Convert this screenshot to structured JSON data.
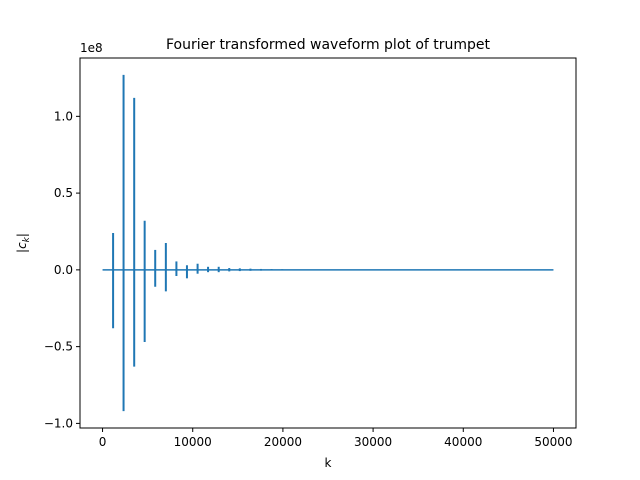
{
  "chart_data": {
    "type": "line",
    "title": "Fourier transformed waveform plot of trumpet",
    "xlabel": "k",
    "ylabel": "|c_k|",
    "y_offset_text": "1e8",
    "xlim": [
      -2500,
      52500
    ],
    "ylim": [
      -103000000.0,
      138000000.0
    ],
    "xticks": [
      0,
      10000,
      20000,
      30000,
      40000,
      50000
    ],
    "xtick_labels": [
      "0",
      "10000",
      "20000",
      "30000",
      "40000",
      "50000"
    ],
    "yticks": [
      -100000000.0,
      -50000000.0,
      0,
      50000000.0,
      100000000.0
    ],
    "ytick_labels": [
      "−1.0",
      "−0.5",
      "0.0",
      "0.5",
      "1.0"
    ],
    "grid": false,
    "series": [
      {
        "color": "#1f77b4",
        "x_range": [
          0,
          50000
        ],
        "peaks": [
          {
            "x": 1170,
            "max": 24000000.0,
            "min": -38000000.0
          },
          {
            "x": 2330,
            "max": 127000000.0,
            "min": -92000000.0
          },
          {
            "x": 3510,
            "max": 112000000.0,
            "min": -63000000.0
          },
          {
            "x": 4670,
            "max": 32000000.0,
            "min": -47000000.0
          },
          {
            "x": 5840,
            "max": 13000000.0,
            "min": -11000000.0
          },
          {
            "x": 7020,
            "max": 17500000.0,
            "min": -14000000.0
          },
          {
            "x": 8190,
            "max": 5500000.0,
            "min": -4000000.0
          },
          {
            "x": 9360,
            "max": 3000000.0,
            "min": -5500000.0
          },
          {
            "x": 10540,
            "max": 4000000.0,
            "min": -2500000.0
          },
          {
            "x": 11700,
            "max": 2000000.0,
            "min": -1500000.0
          },
          {
            "x": 12880,
            "max": 2000000.0,
            "min": -1500000.0
          },
          {
            "x": 14050,
            "max": 1200000.0,
            "min": -1000000.0
          },
          {
            "x": 15220,
            "max": 1000000.0,
            "min": -800000.0
          },
          {
            "x": 16400,
            "max": 800000.0,
            "min": -600000.0
          },
          {
            "x": 17570,
            "max": 600000.0,
            "min": -500000.0
          },
          {
            "x": 18740,
            "max": 500000.0,
            "min": -400000.0
          },
          {
            "x": 19920,
            "max": 400000.0,
            "min": -300000.0
          }
        ]
      }
    ]
  }
}
